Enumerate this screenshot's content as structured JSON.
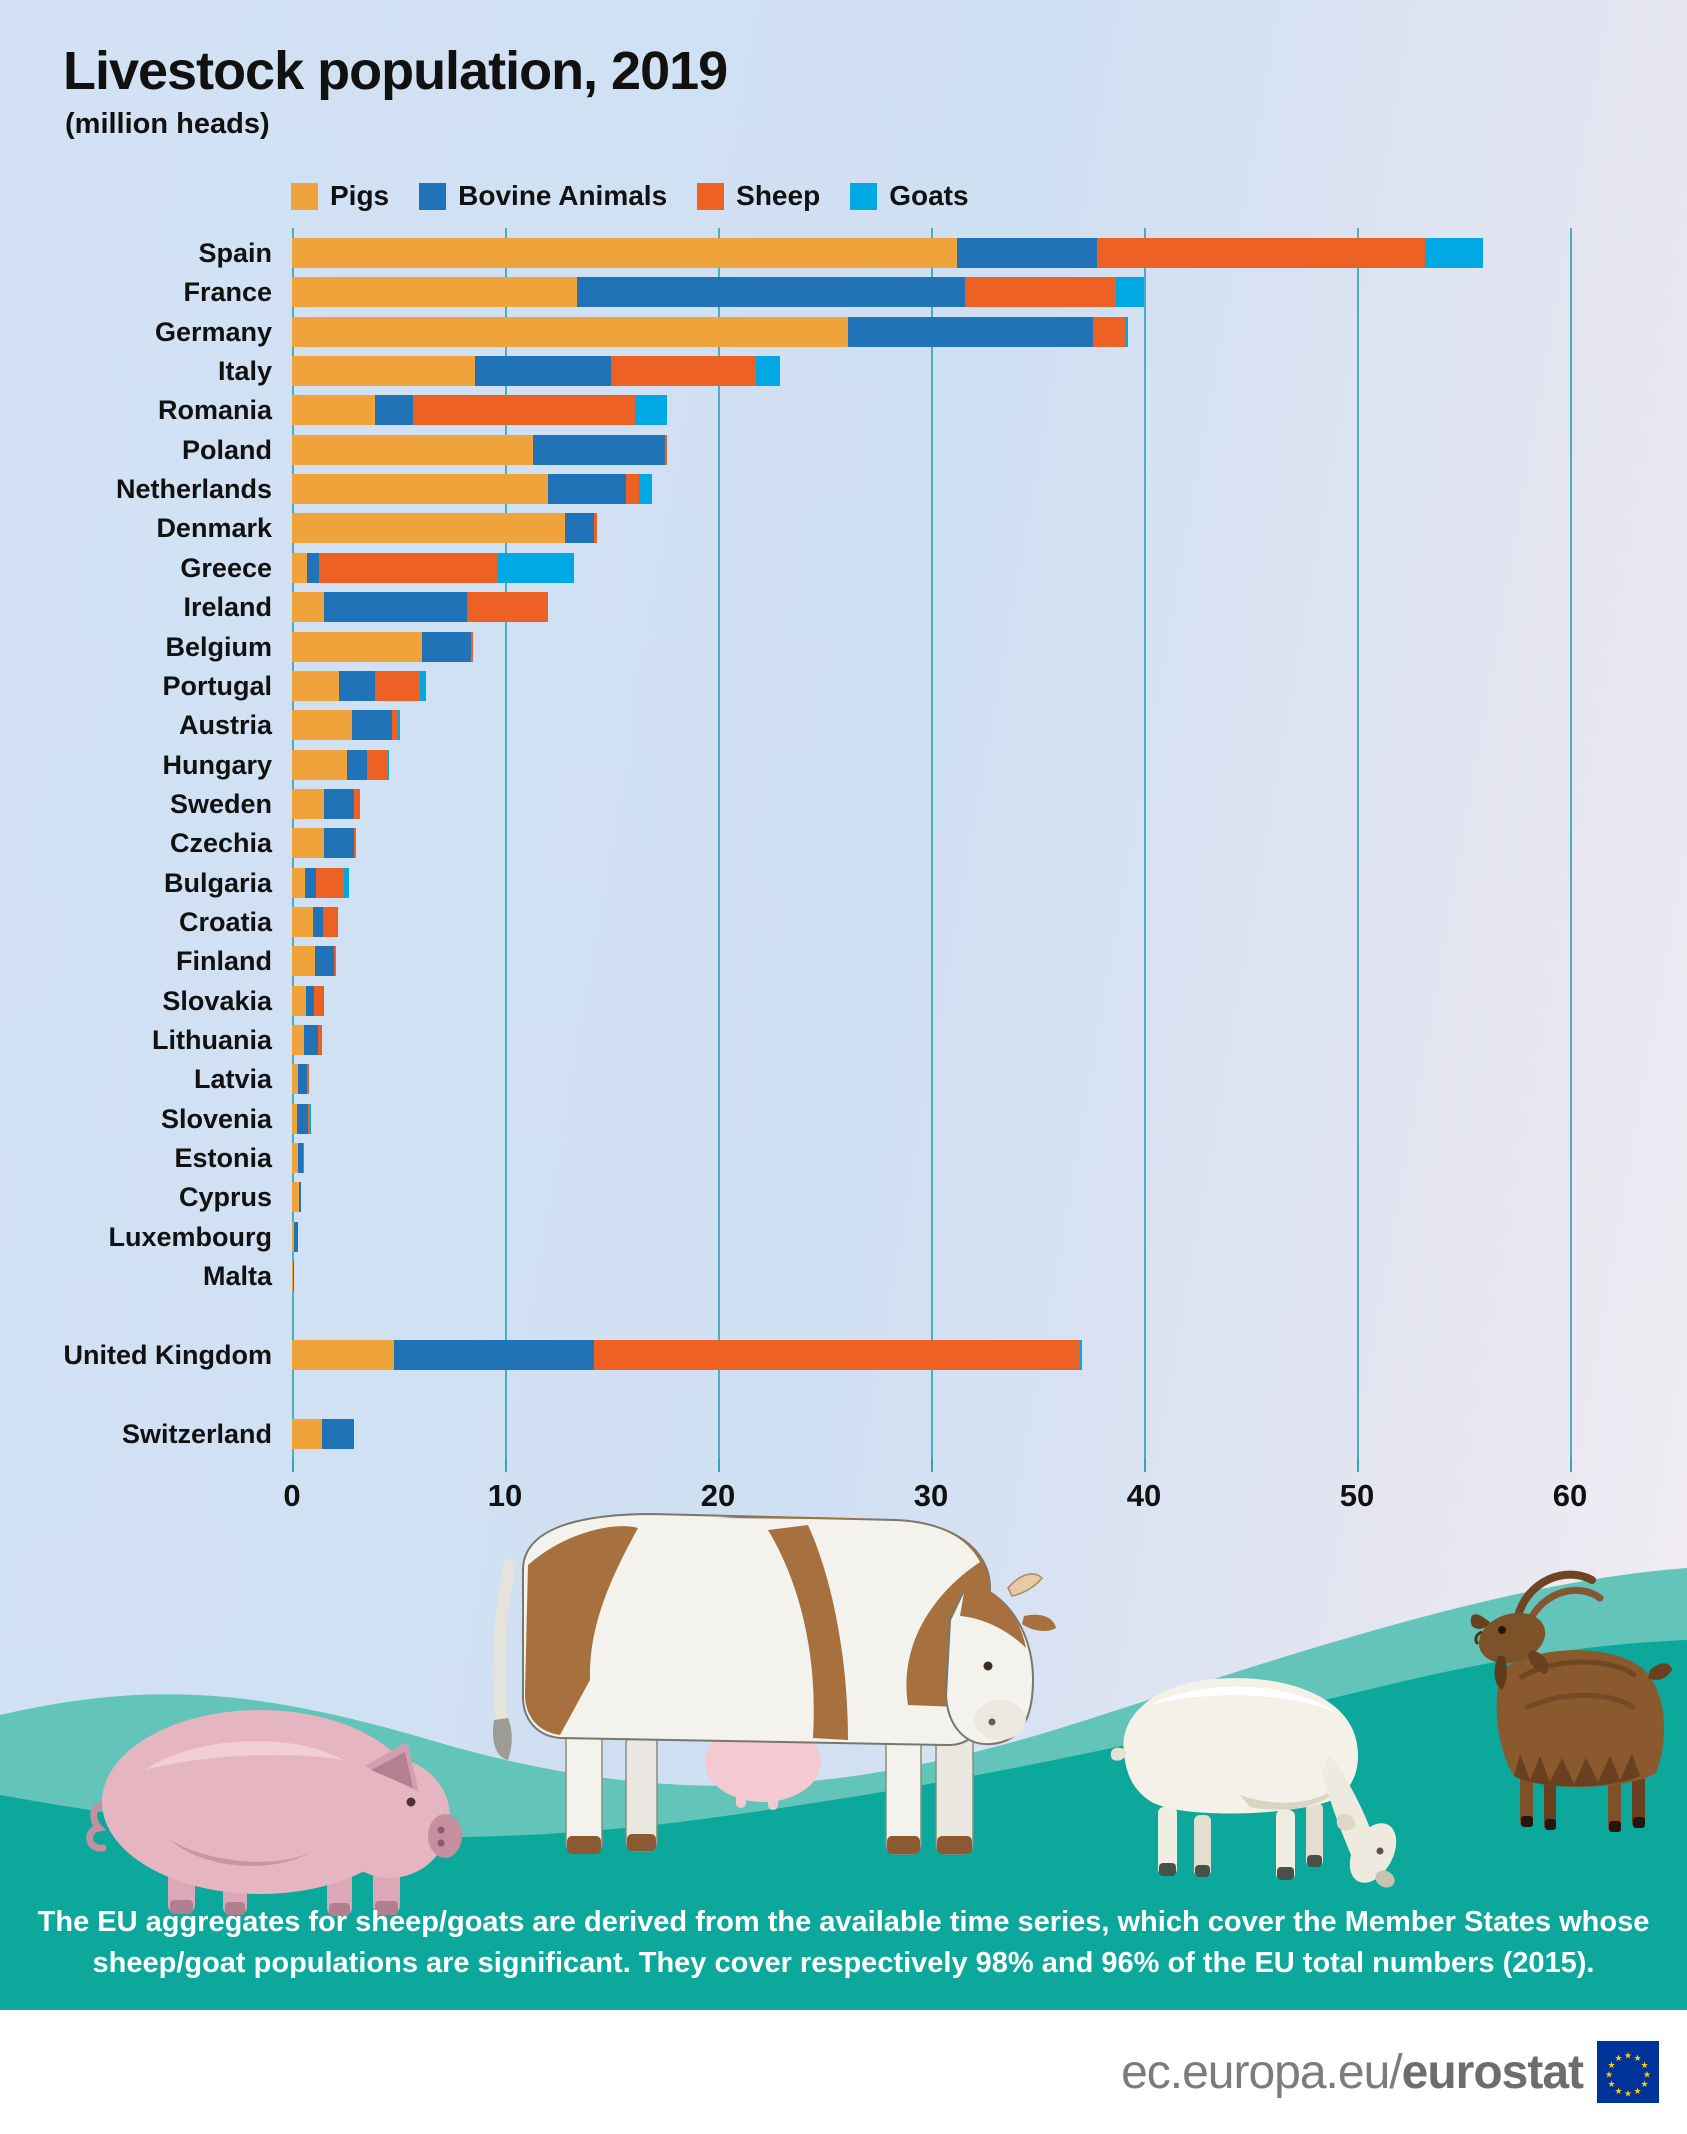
{
  "header": {
    "title": "Livestock population, 2019",
    "subtitle": "(million heads)"
  },
  "legend": [
    {
      "label": "Pigs",
      "color": "#F1A33B",
      "key": "pigs"
    },
    {
      "label": "Bovine Animals",
      "color": "#2173B8",
      "key": "bovine"
    },
    {
      "label": "Sheep",
      "color": "#EE6124",
      "key": "sheep"
    },
    {
      "label": "Goats",
      "color": "#00A9E4",
      "key": "goats"
    }
  ],
  "chart_data": {
    "type": "bar",
    "stacked": true,
    "orientation": "horizontal",
    "title": "Livestock population, 2019",
    "unit": "million heads",
    "xlabel": "million heads",
    "x_ticks": [
      0,
      10,
      20,
      30,
      40,
      50,
      60
    ],
    "xlim": [
      0,
      63
    ],
    "grid": true,
    "gridline_color": "#35a3b9",
    "series_order": [
      "Pigs",
      "Bovine Animals",
      "Sheep",
      "Goats"
    ],
    "rows": [
      {
        "country": "Spain",
        "gap_before": false,
        "values": [
          31.2,
          6.6,
          15.4,
          2.7
        ]
      },
      {
        "country": "France",
        "gap_before": false,
        "values": [
          13.4,
          18.2,
          7.1,
          1.3
        ]
      },
      {
        "country": "Germany",
        "gap_before": false,
        "values": [
          26.1,
          11.5,
          1.5,
          0.15
        ]
      },
      {
        "country": "Italy",
        "gap_before": false,
        "values": [
          8.6,
          6.4,
          6.8,
          1.1
        ]
      },
      {
        "country": "Romania",
        "gap_before": false,
        "values": [
          3.9,
          1.8,
          10.4,
          1.5
        ]
      },
      {
        "country": "Poland",
        "gap_before": false,
        "values": [
          11.3,
          6.2,
          0.1,
          0
        ]
      },
      {
        "country": "Netherlands",
        "gap_before": false,
        "values": [
          12.0,
          3.7,
          0.6,
          0.6
        ]
      },
      {
        "country": "Denmark",
        "gap_before": false,
        "values": [
          12.8,
          1.4,
          0.1,
          0
        ]
      },
      {
        "country": "Greece",
        "gap_before": false,
        "values": [
          0.7,
          0.55,
          8.4,
          3.6
        ]
      },
      {
        "country": "Ireland",
        "gap_before": false,
        "values": [
          1.5,
          6.7,
          3.8,
          0
        ]
      },
      {
        "country": "Belgium",
        "gap_before": false,
        "values": [
          6.1,
          2.3,
          0.1,
          0
        ]
      },
      {
        "country": "Portugal",
        "gap_before": false,
        "values": [
          2.2,
          1.7,
          2.1,
          0.3
        ]
      },
      {
        "country": "Austria",
        "gap_before": false,
        "values": [
          2.8,
          1.9,
          0.3,
          0.08
        ]
      },
      {
        "country": "Hungary",
        "gap_before": false,
        "values": [
          2.6,
          0.9,
          1.0,
          0.05
        ]
      },
      {
        "country": "Sweden",
        "gap_before": false,
        "values": [
          1.5,
          1.4,
          0.3,
          0
        ]
      },
      {
        "country": "Czechia",
        "gap_before": false,
        "values": [
          1.5,
          1.4,
          0.1,
          0
        ]
      },
      {
        "country": "Bulgaria",
        "gap_before": false,
        "values": [
          0.6,
          0.55,
          1.3,
          0.25
        ]
      },
      {
        "country": "Croatia",
        "gap_before": false,
        "values": [
          1.0,
          0.45,
          0.65,
          0.08
        ]
      },
      {
        "country": "Finland",
        "gap_before": false,
        "values": [
          1.1,
          0.85,
          0.1,
          0
        ]
      },
      {
        "country": "Slovakia",
        "gap_before": false,
        "values": [
          0.65,
          0.4,
          0.4,
          0.03
        ]
      },
      {
        "country": "Lithuania",
        "gap_before": false,
        "values": [
          0.55,
          0.65,
          0.15,
          0.02
        ]
      },
      {
        "country": "Latvia",
        "gap_before": false,
        "values": [
          0.3,
          0.4,
          0.1,
          0
        ]
      },
      {
        "country": "Slovenia",
        "gap_before": false,
        "values": [
          0.25,
          0.48,
          0.1,
          0.02
        ]
      },
      {
        "country": "Estonia",
        "gap_before": false,
        "values": [
          0.3,
          0.2,
          0.07,
          0
        ]
      },
      {
        "country": "Cyprus",
        "gap_before": false,
        "values": [
          0.35,
          0.05,
          0,
          0
        ]
      },
      {
        "country": "Luxembourg",
        "gap_before": false,
        "values": [
          0.1,
          0.2,
          0,
          0
        ]
      },
      {
        "country": "Malta",
        "gap_before": false,
        "values": [
          0.04,
          0.01,
          0,
          0
        ]
      },
      {
        "country": "United Kingdom",
        "gap_before": true,
        "values": [
          4.8,
          9.4,
          22.8,
          0.1
        ]
      },
      {
        "country": "Switzerland",
        "gap_before": true,
        "values": [
          1.4,
          1.5,
          0,
          0
        ]
      }
    ]
  },
  "footnote": {
    "line1": "The EU aggregates for sheep/goats are derived from the available time series, which cover the Member States whose",
    "line2": "sheep/goat populations are significant. They cover respectively 98% and 96% of the EU total numbers (2015)."
  },
  "footer": {
    "url_light": "ec.europa.eu/",
    "url_bold": "eurostat"
  },
  "scenery_colors": {
    "wave_light": "#63c4ba",
    "wave_dark": "#0ca89b",
    "sky": "#cfe0f2"
  }
}
